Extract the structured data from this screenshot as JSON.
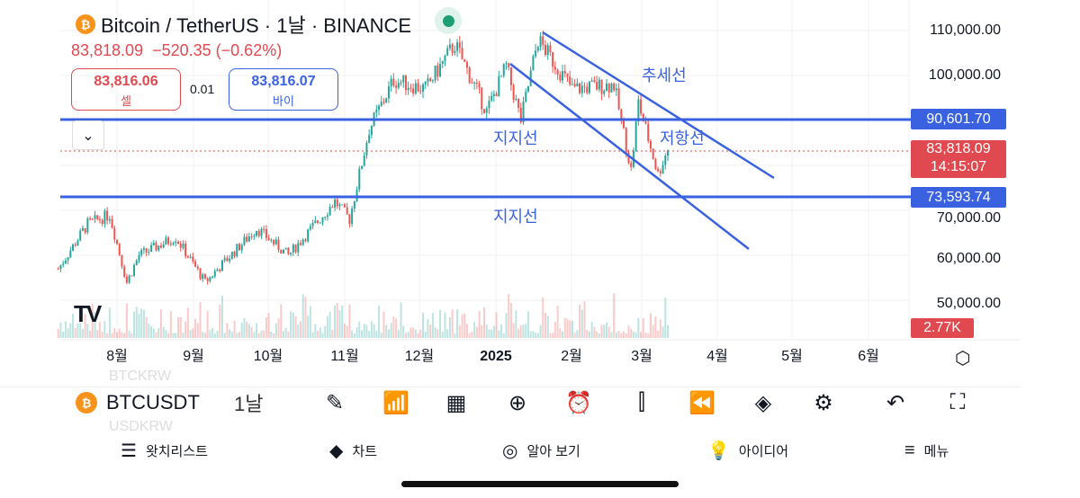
{
  "header": {
    "title": "Bitcoin / TetherUS · 1날 · BINANCE",
    "price": "83,818.09",
    "change": "−520.35 (−0.62%)"
  },
  "trade": {
    "sell_price": "83,816.06",
    "sell_label": "셀",
    "spread": "0.01",
    "buy_price": "83,816.07",
    "buy_label": "바이"
  },
  "price_axis": {
    "labels": [
      "110,000.00",
      "100,000.00",
      "70,000.00",
      "60,000.00",
      "50,000.00"
    ],
    "tags": {
      "upper_line": "90,601.70",
      "last_price": "83,818.09",
      "countdown": "14:15:07",
      "lower_line": "73,593.74",
      "volume": "2.77K"
    }
  },
  "time_axis": [
    "8월",
    "9월",
    "10월",
    "11월",
    "12월",
    "2025",
    "2월",
    "3월",
    "4월",
    "5월",
    "6월"
  ],
  "annotations": {
    "trend": "추세선",
    "support1": "지지선",
    "resistance": "저항선",
    "support2": "지지선"
  },
  "colors": {
    "up": "#26a69a",
    "down": "#ef5350",
    "line": "#3a62e0",
    "price_tag": "#e0494f"
  },
  "price_path": [
    [
      "2024-07-08",
      57000
    ],
    [
      "2024-07-20",
      67000
    ],
    [
      "2024-07-29",
      69000
    ],
    [
      "2024-08-05",
      54000
    ],
    [
      "2024-08-10",
      60000
    ],
    [
      "2024-08-25",
      64000
    ],
    [
      "2024-09-06",
      54000
    ],
    [
      "2024-09-27",
      66000
    ],
    [
      "2024-10-10",
      60000
    ],
    [
      "2024-10-29",
      72000
    ],
    [
      "2024-11-04",
      68000
    ],
    [
      "2024-11-12",
      88000
    ],
    [
      "2024-11-22",
      99000
    ],
    [
      "2024-12-05",
      97000
    ],
    [
      "2024-12-17",
      107000
    ],
    [
      "2024-12-30",
      92000
    ],
    [
      "2025-01-07",
      102000
    ],
    [
      "2025-01-13",
      90000
    ],
    [
      "2025-01-20",
      108000
    ],
    [
      "2025-02-03",
      97000
    ],
    [
      "2025-02-20",
      98000
    ],
    [
      "2025-02-27",
      79000
    ],
    [
      "2025-03-02",
      94000
    ],
    [
      "2025-03-10",
      78000
    ],
    [
      "2025-03-14",
      83818
    ]
  ],
  "symbol_bar": {
    "symbol": "BTCUSDT",
    "interval": "1날",
    "ghost_above": "BTCKRW",
    "ghost_below": "USDKRW",
    "tools": [
      "pencil-icon",
      "indicators-icon",
      "templates-icon",
      "add-icon",
      "alert-icon",
      "candles-icon",
      "replay-icon",
      "layers-icon",
      "settings-icon",
      "undo-icon",
      "fullscreen-icon"
    ]
  },
  "bottom_nav": [
    {
      "icon": "watchlist-icon",
      "label": "왓치리스트"
    },
    {
      "icon": "chart-icon",
      "label": "차트"
    },
    {
      "icon": "explore-icon",
      "label": "알아 보기"
    },
    {
      "icon": "ideas-icon",
      "label": "아이디어"
    },
    {
      "icon": "menu-icon",
      "label": "메뉴"
    }
  ]
}
